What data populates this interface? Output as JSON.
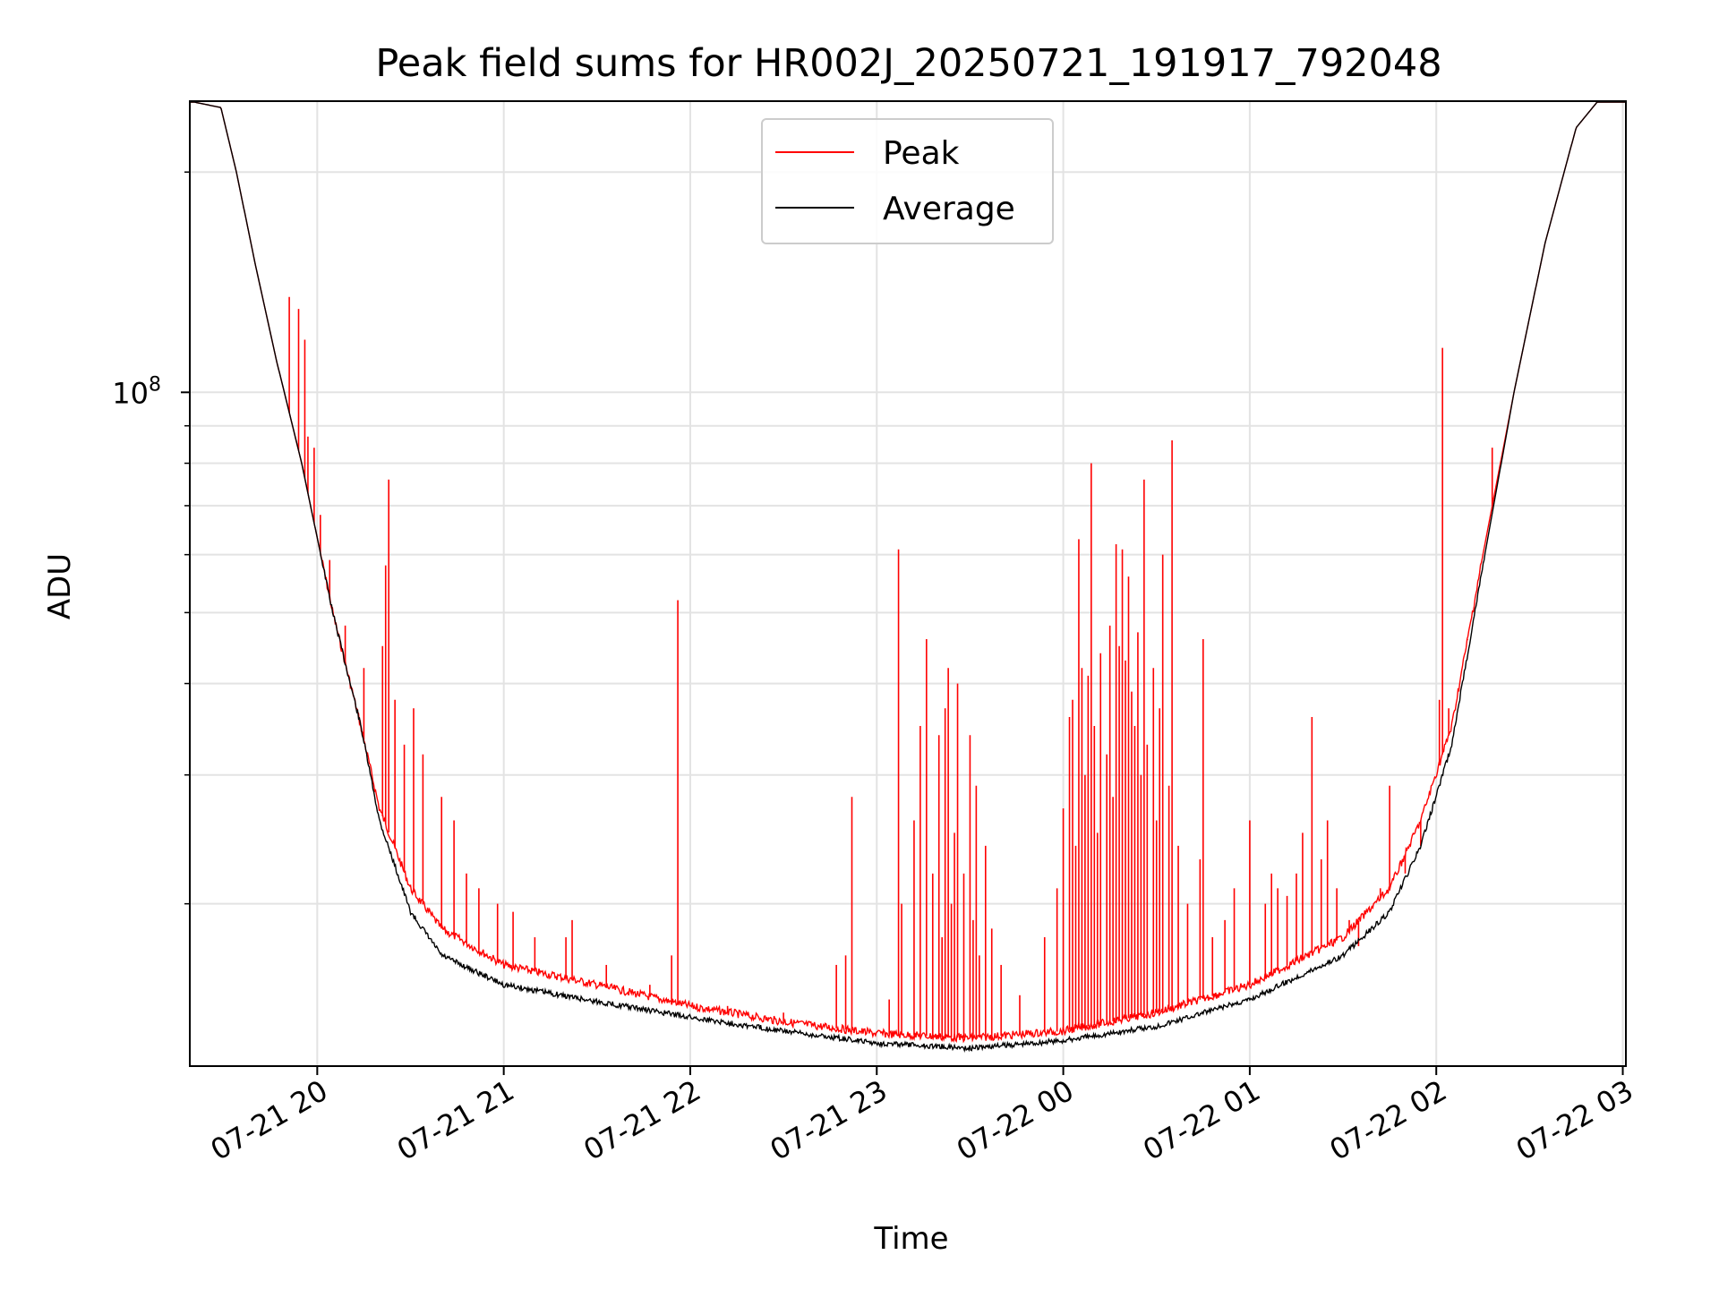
{
  "chart_data": {
    "type": "line",
    "title": "Peak field sums for HR002J_20250721_191917_792048",
    "xlabel": "Time",
    "ylabel": "ADU",
    "y_scale": "log",
    "ylim": [
      12000000,
      250000000
    ],
    "y_major_tick": {
      "value": 100000000,
      "label_base": "10",
      "label_exp": "8"
    },
    "y_minor_ticks": [
      20000000,
      30000000,
      40000000,
      50000000,
      60000000,
      70000000,
      80000000,
      90000000,
      200000000
    ],
    "xlim": [
      "2025-07-21 19:19",
      "2025-07-22 03:01"
    ],
    "x_ticks": [
      {
        "t": "2025-07-21 20:00",
        "label": "07-21 20"
      },
      {
        "t": "2025-07-21 21:00",
        "label": "07-21 21"
      },
      {
        "t": "2025-07-21 22:00",
        "label": "07-21 22"
      },
      {
        "t": "2025-07-21 23:00",
        "label": "07-21 23"
      },
      {
        "t": "2025-07-22 00:00",
        "label": "07-22 00"
      },
      {
        "t": "2025-07-22 01:00",
        "label": "07-22 01"
      },
      {
        "t": "2025-07-22 02:00",
        "label": "07-22 02"
      },
      {
        "t": "2025-07-22 03:00",
        "label": "07-22 03"
      }
    ],
    "grid": true,
    "legend_position": "upper center",
    "series": [
      {
        "name": "Peak",
        "color": "#ff0000",
        "baseline": [
          [
            "2025-07-21 19:19",
            250000000
          ],
          [
            "2025-07-21 19:29",
            245000000
          ],
          [
            "2025-07-21 19:34",
            200000000
          ],
          [
            "2025-07-21 19:40",
            150000000
          ],
          [
            "2025-07-21 19:47",
            110000000
          ],
          [
            "2025-07-21 19:55",
            80000000
          ],
          [
            "2025-07-21 20:05",
            50000000
          ],
          [
            "2025-07-21 20:14",
            35000000
          ],
          [
            "2025-07-21 20:20",
            27000000
          ],
          [
            "2025-07-21 20:30",
            21000000
          ],
          [
            "2025-07-21 20:40",
            18500000
          ],
          [
            "2025-07-21 21:00",
            16500000
          ],
          [
            "2025-07-21 21:30",
            15500000
          ],
          [
            "2025-07-21 22:00",
            14500000
          ],
          [
            "2025-07-21 22:30",
            13800000
          ],
          [
            "2025-07-21 23:00",
            13300000
          ],
          [
            "2025-07-21 23:30",
            13100000
          ],
          [
            "2025-07-22 00:00",
            13400000
          ],
          [
            "2025-07-22 00:30",
            14200000
          ],
          [
            "2025-07-22 01:00",
            15500000
          ],
          [
            "2025-07-22 01:30",
            18000000
          ],
          [
            "2025-07-22 01:45",
            21000000
          ],
          [
            "2025-07-22 01:55",
            26000000
          ],
          [
            "2025-07-22 02:05",
            35000000
          ],
          [
            "2025-07-22 02:15",
            60000000
          ],
          [
            "2025-07-22 02:25",
            100000000
          ],
          [
            "2025-07-22 02:35",
            160000000
          ],
          [
            "2025-07-22 02:45",
            230000000
          ],
          [
            "2025-07-22 02:52",
            250000000
          ],
          [
            "2025-07-22 03:01",
            250000000
          ]
        ],
        "spikes": [
          [
            "2025-07-21 19:51",
            135000000
          ],
          [
            "2025-07-21 19:54",
            130000000
          ],
          [
            "2025-07-21 19:56",
            118000000
          ],
          [
            "2025-07-21 19:57",
            87000000
          ],
          [
            "2025-07-21 19:59",
            84000000
          ],
          [
            "2025-07-21 20:01",
            68000000
          ],
          [
            "2025-07-21 20:04",
            59000000
          ],
          [
            "2025-07-21 20:09",
            48000000
          ],
          [
            "2025-07-21 20:15",
            42000000
          ],
          [
            "2025-07-21 20:21",
            45000000
          ],
          [
            "2025-07-21 20:22",
            58000000
          ],
          [
            "2025-07-21 20:23",
            76000000
          ],
          [
            "2025-07-21 20:25",
            38000000
          ],
          [
            "2025-07-21 20:28",
            33000000
          ],
          [
            "2025-07-21 20:31",
            37000000
          ],
          [
            "2025-07-21 20:34",
            32000000
          ],
          [
            "2025-07-21 20:40",
            28000000
          ],
          [
            "2025-07-21 20:44",
            26000000
          ],
          [
            "2025-07-21 20:48",
            22000000
          ],
          [
            "2025-07-21 20:52",
            21000000
          ],
          [
            "2025-07-21 20:58",
            20000000
          ],
          [
            "2025-07-21 21:03",
            19500000
          ],
          [
            "2025-07-21 21:10",
            18000000
          ],
          [
            "2025-07-21 21:20",
            18000000
          ],
          [
            "2025-07-21 21:22",
            19000000
          ],
          [
            "2025-07-21 21:33",
            16500000
          ],
          [
            "2025-07-21 21:47",
            15500000
          ],
          [
            "2025-07-21 21:54",
            17000000
          ],
          [
            "2025-07-21 21:56",
            52000000
          ],
          [
            "2025-07-21 22:12",
            14500000
          ],
          [
            "2025-07-21 22:30",
            14200000
          ],
          [
            "2025-07-21 22:47",
            16500000
          ],
          [
            "2025-07-21 22:50",
            17000000
          ],
          [
            "2025-07-21 22:52",
            28000000
          ],
          [
            "2025-07-21 23:04",
            14800000
          ],
          [
            "2025-07-21 23:07",
            61000000
          ],
          [
            "2025-07-21 23:08",
            20000000
          ],
          [
            "2025-07-21 23:12",
            26000000
          ],
          [
            "2025-07-21 23:14",
            35000000
          ],
          [
            "2025-07-21 23:16",
            46000000
          ],
          [
            "2025-07-21 23:18",
            22000000
          ],
          [
            "2025-07-21 23:20",
            34000000
          ],
          [
            "2025-07-21 23:21",
            18000000
          ],
          [
            "2025-07-21 23:22",
            37000000
          ],
          [
            "2025-07-21 23:23",
            42000000
          ],
          [
            "2025-07-21 23:24",
            20000000
          ],
          [
            "2025-07-21 23:25",
            25000000
          ],
          [
            "2025-07-21 23:26",
            40000000
          ],
          [
            "2025-07-21 23:28",
            22000000
          ],
          [
            "2025-07-21 23:30",
            34000000
          ],
          [
            "2025-07-21 23:31",
            19000000
          ],
          [
            "2025-07-21 23:32",
            29000000
          ],
          [
            "2025-07-21 23:33",
            17000000
          ],
          [
            "2025-07-21 23:35",
            24000000
          ],
          [
            "2025-07-21 23:37",
            18500000
          ],
          [
            "2025-07-21 23:40",
            16500000
          ],
          [
            "2025-07-21 23:46",
            15000000
          ],
          [
            "2025-07-21 23:54",
            18000000
          ],
          [
            "2025-07-21 23:58",
            21000000
          ],
          [
            "2025-07-22 00:00",
            27000000
          ],
          [
            "2025-07-22 00:02",
            36000000
          ],
          [
            "2025-07-22 00:03",
            38000000
          ],
          [
            "2025-07-22 00:04",
            24000000
          ],
          [
            "2025-07-22 00:05",
            63000000
          ],
          [
            "2025-07-22 00:06",
            42000000
          ],
          [
            "2025-07-22 00:07",
            30000000
          ],
          [
            "2025-07-22 00:08",
            41000000
          ],
          [
            "2025-07-22 00:09",
            80000000
          ],
          [
            "2025-07-22 00:10",
            35000000
          ],
          [
            "2025-07-22 00:11",
            25000000
          ],
          [
            "2025-07-22 00:12",
            44000000
          ],
          [
            "2025-07-22 00:14",
            32000000
          ],
          [
            "2025-07-22 00:15",
            48000000
          ],
          [
            "2025-07-22 00:16",
            28000000
          ],
          [
            "2025-07-22 00:17",
            62000000
          ],
          [
            "2025-07-22 00:18",
            45000000
          ],
          [
            "2025-07-22 00:19",
            61000000
          ],
          [
            "2025-07-22 00:20",
            43000000
          ],
          [
            "2025-07-22 00:21",
            56000000
          ],
          [
            "2025-07-22 00:22",
            39000000
          ],
          [
            "2025-07-22 00:23",
            35000000
          ],
          [
            "2025-07-22 00:24",
            47000000
          ],
          [
            "2025-07-22 00:25",
            30000000
          ],
          [
            "2025-07-22 00:26",
            76000000
          ],
          [
            "2025-07-22 00:27",
            33000000
          ],
          [
            "2025-07-22 00:29",
            42000000
          ],
          [
            "2025-07-22 00:30",
            26000000
          ],
          [
            "2025-07-22 00:31",
            37000000
          ],
          [
            "2025-07-22 00:32",
            60000000
          ],
          [
            "2025-07-22 00:34",
            29000000
          ],
          [
            "2025-07-22 00:35",
            86000000
          ],
          [
            "2025-07-22 00:37",
            24000000
          ],
          [
            "2025-07-22 00:40",
            20000000
          ],
          [
            "2025-07-22 00:44",
            23000000
          ],
          [
            "2025-07-22 00:45",
            46000000
          ],
          [
            "2025-07-22 00:48",
            18000000
          ],
          [
            "2025-07-22 00:52",
            19000000
          ],
          [
            "2025-07-22 00:55",
            21000000
          ],
          [
            "2025-07-22 01:00",
            26000000
          ],
          [
            "2025-07-22 01:05",
            20000000
          ],
          [
            "2025-07-22 01:07",
            22000000
          ],
          [
            "2025-07-22 01:09",
            21000000
          ],
          [
            "2025-07-22 01:12",
            20500000
          ],
          [
            "2025-07-22 01:15",
            22000000
          ],
          [
            "2025-07-22 01:17",
            25000000
          ],
          [
            "2025-07-22 01:20",
            36000000
          ],
          [
            "2025-07-22 01:23",
            23000000
          ],
          [
            "2025-07-22 01:25",
            26000000
          ],
          [
            "2025-07-22 01:28",
            21000000
          ],
          [
            "2025-07-22 01:32",
            19000000
          ],
          [
            "2025-07-22 01:35",
            17500000
          ],
          [
            "2025-07-22 01:42",
            21000000
          ],
          [
            "2025-07-22 01:45",
            29000000
          ],
          [
            "2025-07-22 01:50",
            22000000
          ],
          [
            "2025-07-22 01:55",
            24000000
          ],
          [
            "2025-07-22 02:01",
            38000000
          ],
          [
            "2025-07-22 02:02",
            115000000
          ],
          [
            "2025-07-22 02:04",
            37000000
          ],
          [
            "2025-07-22 02:10",
            46000000
          ],
          [
            "2025-07-22 02:18",
            84000000
          ]
        ]
      },
      {
        "name": "Average",
        "color": "#000000",
        "baseline": [
          [
            "2025-07-21 19:19",
            250000000
          ],
          [
            "2025-07-21 19:29",
            245000000
          ],
          [
            "2025-07-21 19:34",
            200000000
          ],
          [
            "2025-07-21 19:40",
            150000000
          ],
          [
            "2025-07-21 19:47",
            110000000
          ],
          [
            "2025-07-21 19:55",
            80000000
          ],
          [
            "2025-07-21 20:05",
            50000000
          ],
          [
            "2025-07-21 20:14",
            35000000
          ],
          [
            "2025-07-21 20:20",
            26000000
          ],
          [
            "2025-07-21 20:30",
            19500000
          ],
          [
            "2025-07-21 20:40",
            17000000
          ],
          [
            "2025-07-21 21:00",
            15500000
          ],
          [
            "2025-07-21 21:30",
            14700000
          ],
          [
            "2025-07-21 22:00",
            14000000
          ],
          [
            "2025-07-21 22:30",
            13400000
          ],
          [
            "2025-07-21 23:00",
            12900000
          ],
          [
            "2025-07-21 23:30",
            12700000
          ],
          [
            "2025-07-22 00:00",
            13000000
          ],
          [
            "2025-07-22 00:30",
            13600000
          ],
          [
            "2025-07-22 01:00",
            14800000
          ],
          [
            "2025-07-22 01:30",
            17000000
          ],
          [
            "2025-07-22 01:45",
            19500000
          ],
          [
            "2025-07-22 01:55",
            24000000
          ],
          [
            "2025-07-22 02:05",
            33000000
          ],
          [
            "2025-07-22 02:15",
            58000000
          ],
          [
            "2025-07-22 02:25",
            100000000
          ],
          [
            "2025-07-22 02:35",
            160000000
          ],
          [
            "2025-07-22 02:45",
            230000000
          ],
          [
            "2025-07-22 02:52",
            250000000
          ],
          [
            "2025-07-22 03:01",
            250000000
          ]
        ]
      }
    ]
  }
}
